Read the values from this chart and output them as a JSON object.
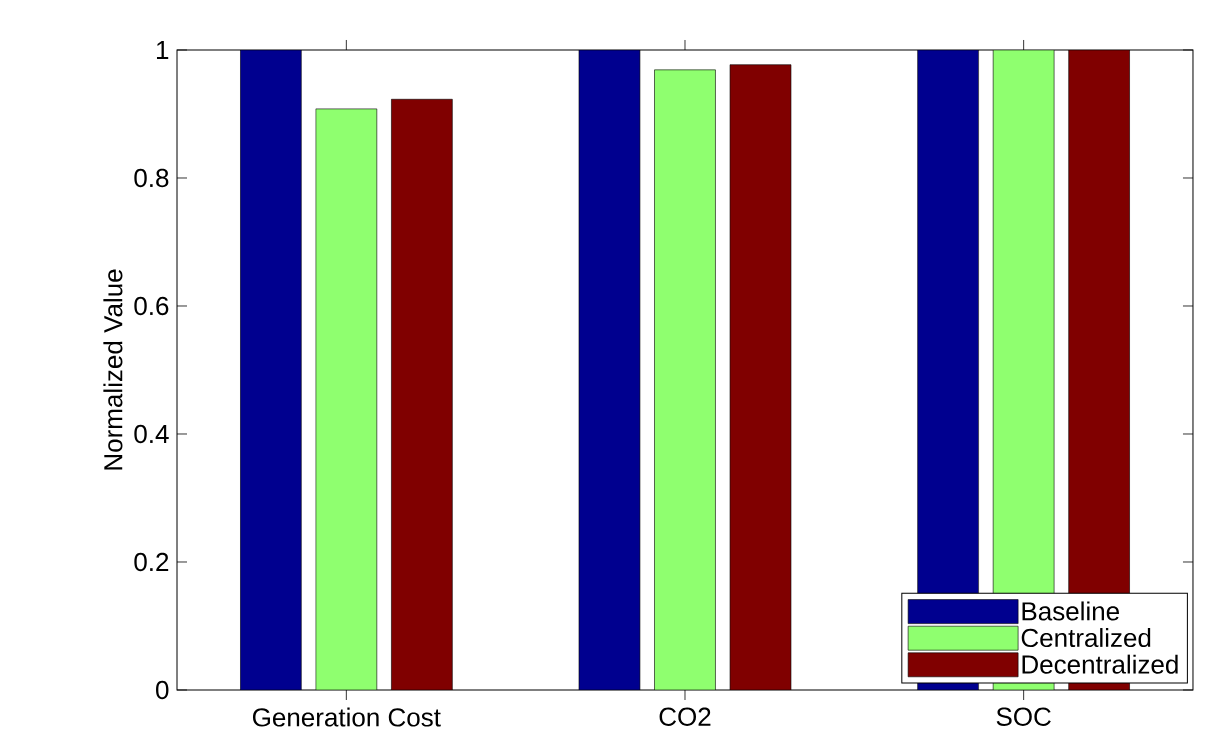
{
  "chart_data": {
    "type": "bar",
    "ylabel": "Normalized Value",
    "categories": [
      "Generation Cost",
      "CO2",
      "SOC"
    ],
    "series": [
      {
        "name": "Baseline",
        "color": "#00008f",
        "values": [
          1,
          1,
          1
        ]
      },
      {
        "name": "Centralized",
        "color": "#8fff6f",
        "values": [
          0.908,
          0.969,
          1
        ]
      },
      {
        "name": "Decentralized",
        "color": "#800000",
        "values": [
          0.923,
          0.977,
          1
        ]
      }
    ],
    "ylim": [
      0,
      1
    ],
    "yticks": [
      0,
      0.2,
      0.4,
      0.6,
      0.8,
      1
    ],
    "grid": false,
    "legend": "bottom right"
  }
}
